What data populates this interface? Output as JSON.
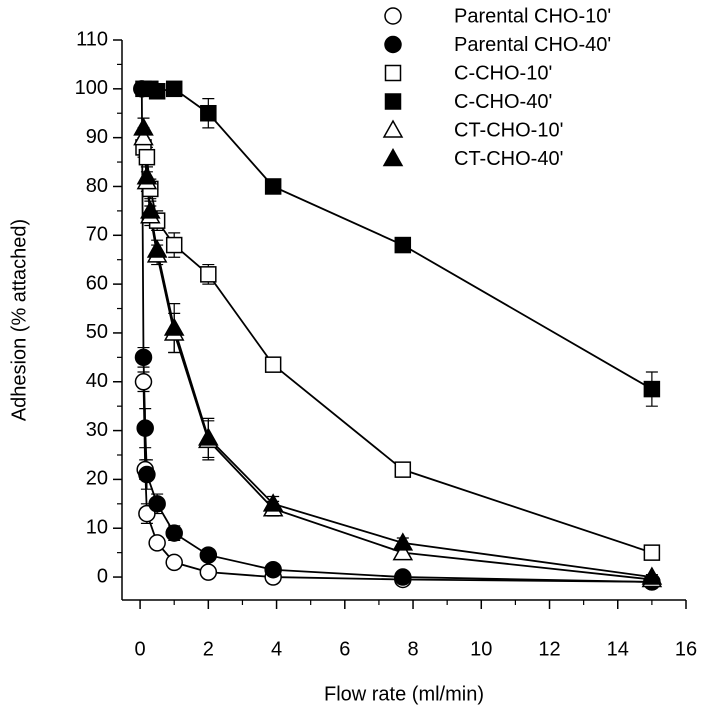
{
  "chart_data": {
    "type": "line",
    "x_label": "Flow rate (ml/min)",
    "y_label": "Adhesion (% attached)",
    "x": [
      0.05,
      0.1,
      0.15,
      0.2,
      0.3,
      0.5,
      1,
      2,
      3.9,
      7.7,
      15
    ],
    "series": [
      {
        "name": "Parental CHO-10'",
        "color": "#000000",
        "marker": "circle",
        "filled": false,
        "values": [
          null,
          40,
          22,
          13,
          null,
          7,
          3,
          1,
          0,
          -0.5,
          -1
        ],
        "errors": [
          null,
          2,
          2,
          2,
          null,
          1,
          0.5,
          0.5,
          0.5,
          0.5,
          0.5
        ]
      },
      {
        "name": "Parental CHO-40'",
        "color": "#000000",
        "marker": "circle",
        "filled": true,
        "values": [
          100,
          45,
          30.5,
          21,
          null,
          15,
          9,
          4.5,
          1.5,
          0,
          -1
        ],
        "errors": [
          0.5,
          2,
          4,
          3,
          null,
          2,
          1.5,
          1,
          0.5,
          0.5,
          0.5
        ]
      },
      {
        "name": "C-CHO-10'",
        "color": "#000000",
        "marker": "square",
        "filled": false,
        "values": [
          null,
          88,
          null,
          86,
          79.5,
          73,
          68,
          62,
          43.5,
          22,
          5
        ],
        "errors": [
          null,
          2,
          null,
          2,
          2,
          2,
          2.5,
          2,
          1,
          1,
          1
        ]
      },
      {
        "name": "C-CHO-40'",
        "color": "#000000",
        "marker": "square",
        "filled": true,
        "values": [
          null,
          100,
          null,
          null,
          100,
          99.5,
          100,
          95,
          80,
          68,
          38.5
        ],
        "errors": [
          null,
          0.5,
          null,
          null,
          0.5,
          0.5,
          0.5,
          3,
          1,
          1,
          3.5
        ]
      },
      {
        "name": "CT-CHO-10'",
        "color": "#000000",
        "marker": "triangle",
        "filled": false,
        "values": [
          null,
          90,
          null,
          81,
          74,
          66,
          50,
          28,
          14,
          5,
          -0.5
        ],
        "errors": [
          null,
          2,
          null,
          2,
          2,
          2,
          4,
          4,
          1.5,
          1,
          0.5
        ]
      },
      {
        "name": "CT-CHO-40'",
        "color": "#000000",
        "marker": "triangle",
        "filled": true,
        "values": [
          null,
          92,
          null,
          82,
          75,
          67,
          51,
          28.5,
          15,
          7,
          0
        ],
        "errors": [
          null,
          2,
          null,
          2,
          2,
          2,
          5,
          4,
          1.5,
          1,
          0.5
        ]
      }
    ],
    "xlim": [
      -0.53,
      16
    ],
    "xticks": [
      0,
      2,
      4,
      6,
      8,
      10,
      12,
      14,
      16
    ],
    "ylim": [
      -4.7,
      110
    ],
    "yticks": [
      0,
      10,
      20,
      30,
      40,
      50,
      60,
      70,
      80,
      90,
      100,
      110
    ],
    "grid": false,
    "legend": "top-right"
  }
}
